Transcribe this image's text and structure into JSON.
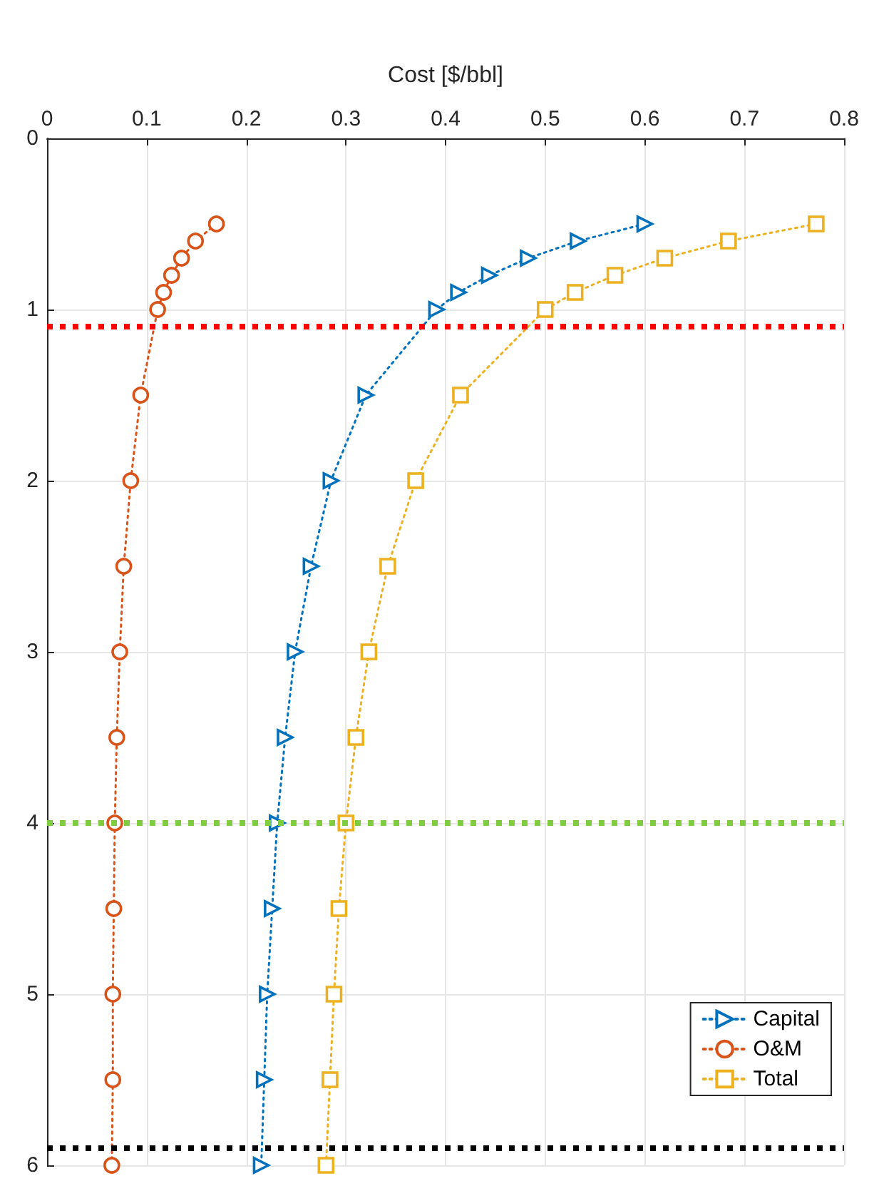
{
  "chart_data": {
    "type": "line",
    "xlabel": "Cost [$/bbl]",
    "xlim": [
      0,
      0.8
    ],
    "xticks": [
      0,
      0.1,
      0.2,
      0.3,
      0.4,
      0.5,
      0.6,
      0.7,
      0.8
    ],
    "ylim": [
      6,
      0
    ],
    "yticks": [
      0,
      1,
      2,
      3,
      4,
      5,
      6
    ],
    "grid": true,
    "legend": "bottom right",
    "line_style": "dotted",
    "series": [
      {
        "name": "Capital",
        "color": "#0072bd",
        "marker": "triangle",
        "x": [
          0.6,
          0.533,
          0.483,
          0.444,
          0.413,
          0.391,
          0.32,
          0.285,
          0.265,
          0.249,
          0.239,
          0.231,
          0.226,
          0.221,
          0.218,
          0.215
        ],
        "values": [
          0.5,
          0.6,
          0.7,
          0.8,
          0.9,
          1.0,
          1.5,
          2,
          2.5,
          3,
          3.5,
          4,
          4.5,
          5,
          5.5,
          6
        ]
      },
      {
        "name": "O&M",
        "color": "#d95319",
        "marker": "circle",
        "x": [
          0.17,
          0.149,
          0.135,
          0.125,
          0.117,
          0.111,
          0.094,
          0.084,
          0.077,
          0.073,
          0.07,
          0.068,
          0.067,
          0.066,
          0.066,
          0.065
        ],
        "values": [
          0.5,
          0.6,
          0.7,
          0.8,
          0.9,
          1.0,
          1.5,
          2,
          2.5,
          3,
          3.5,
          4,
          4.5,
          5,
          5.5,
          6
        ]
      },
      {
        "name": "Total",
        "color": "#edb120",
        "marker": "square",
        "x": [
          0.772,
          0.684,
          0.62,
          0.57,
          0.53,
          0.5,
          0.415,
          0.37,
          0.342,
          0.323,
          0.31,
          0.3,
          0.293,
          0.288,
          0.284,
          0.28
        ],
        "values": [
          0.5,
          0.6,
          0.7,
          0.8,
          0.9,
          1.0,
          1.5,
          2,
          2.5,
          3,
          3.5,
          4,
          4.5,
          5,
          5.5,
          6
        ]
      }
    ],
    "ref_lines": [
      {
        "axis": "y",
        "value": 1.1,
        "color": "#ff0000",
        "line_style": "dotted"
      },
      {
        "axis": "y",
        "value": 4,
        "color": "#7fcc3f",
        "line_style": "dotted"
      },
      {
        "axis": "y",
        "value": 5.9,
        "color": "#000000",
        "line_style": "dotted"
      }
    ]
  }
}
